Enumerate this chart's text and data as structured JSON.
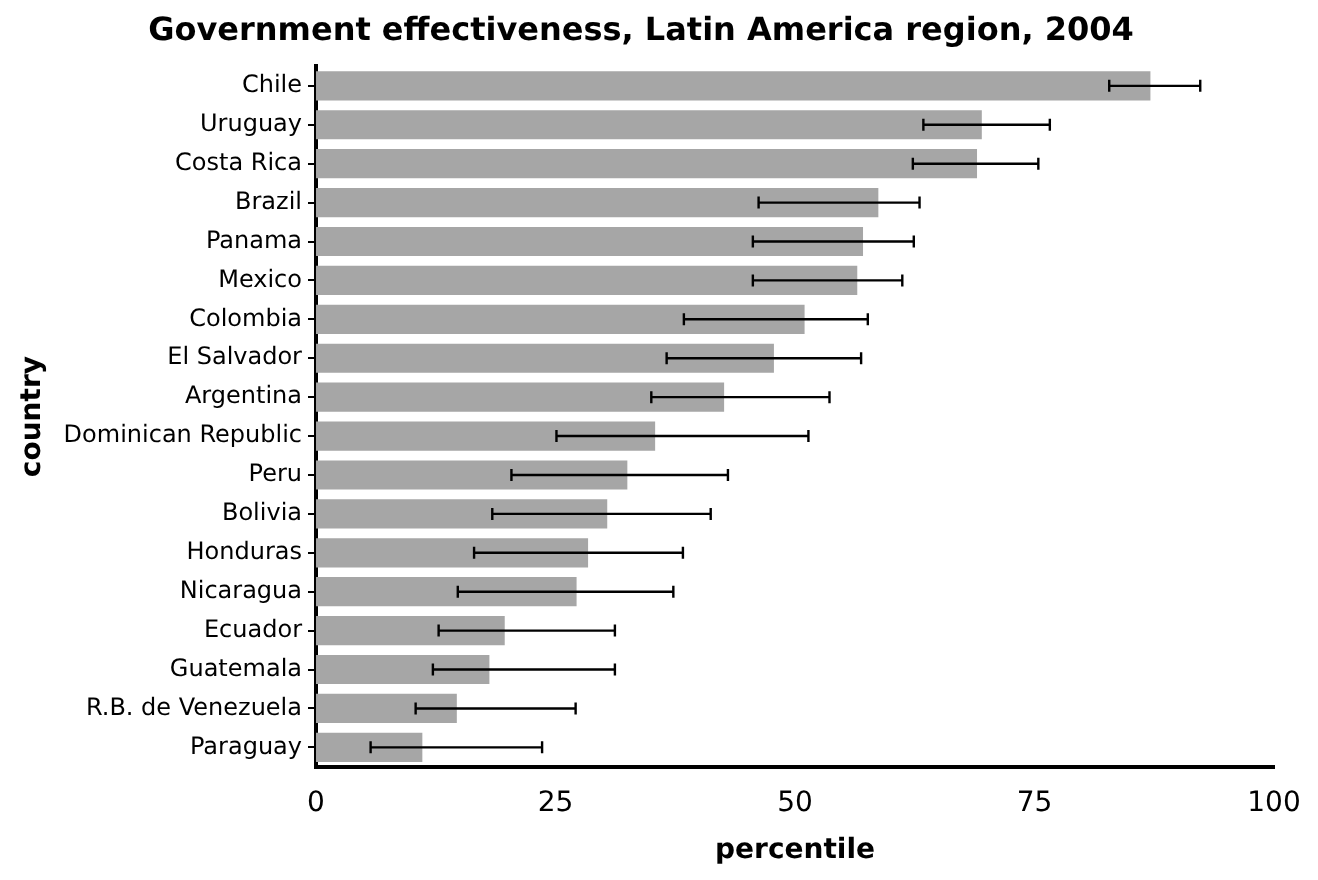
{
  "chart_data": {
    "type": "bar",
    "orientation": "horizontal",
    "title": "Government effectiveness, Latin America region, 2004",
    "xlabel": "percentile",
    "ylabel": "country",
    "categories": [
      "Chile",
      "Uruguay",
      "Costa Rica",
      "Brazil",
      "Panama",
      "Mexico",
      "Colombia",
      "El Salvador",
      "Argentina",
      "Dominican Republic",
      "Peru",
      "Bolivia",
      "Honduras",
      "Nicaragua",
      "Ecuador",
      "Guatemala",
      "R.B. de Venezuela",
      "Paraguay"
    ],
    "values": [
      87.1,
      69.5,
      69.0,
      58.7,
      57.1,
      56.5,
      51.0,
      47.8,
      42.6,
      35.4,
      32.5,
      30.4,
      28.4,
      27.2,
      19.7,
      18.1,
      14.7,
      11.1
    ],
    "errors": [
      [
        82.8,
        92.3
      ],
      [
        63.4,
        76.6
      ],
      [
        62.3,
        75.4
      ],
      [
        46.2,
        63.0
      ],
      [
        45.6,
        62.4
      ],
      [
        45.6,
        61.2
      ],
      [
        38.4,
        57.6
      ],
      [
        36.6,
        56.9
      ],
      [
        35.0,
        53.6
      ],
      [
        25.1,
        51.4
      ],
      [
        20.4,
        43.0
      ],
      [
        18.4,
        41.2
      ],
      [
        16.5,
        38.3
      ],
      [
        14.8,
        37.3
      ],
      [
        12.8,
        31.2
      ],
      [
        12.2,
        31.2
      ],
      [
        10.4,
        27.1
      ],
      [
        5.7,
        23.6
      ]
    ],
    "color": "#a6a6a6",
    "xlim": [
      0,
      100
    ],
    "xticks": [
      0,
      25,
      50,
      75,
      100
    ],
    "grid": false,
    "legend": false
  }
}
